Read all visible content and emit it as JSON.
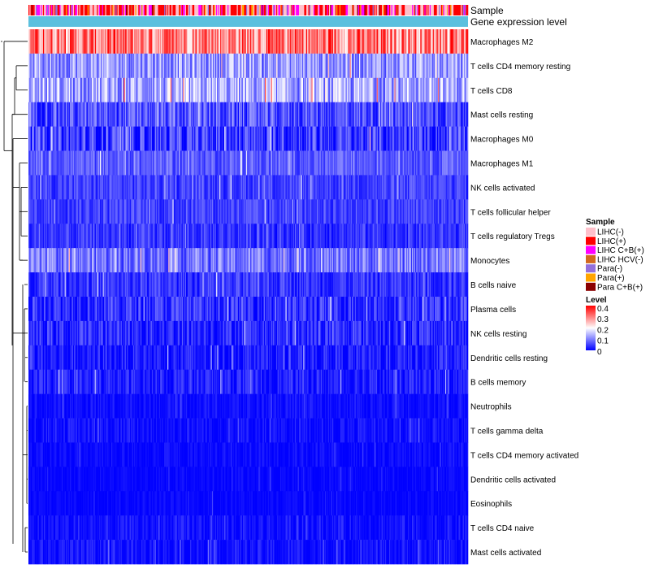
{
  "chart_data": {
    "type": "heatmap",
    "title": "",
    "n_samples": 424,
    "annotations": [
      {
        "name": "Sample",
        "label": "Sample"
      },
      {
        "name": "Gene expression level",
        "label": "Gene expression level"
      }
    ],
    "rows": [
      {
        "label": "Macrophages M2",
        "mean": 0.3,
        "spread": 0.1
      },
      {
        "label": "T cells CD4 memory resting",
        "mean": 0.12,
        "spread": 0.07
      },
      {
        "label": "T cells CD8",
        "mean": 0.13,
        "spread": 0.08
      },
      {
        "label": "Mast cells resting",
        "mean": 0.06,
        "spread": 0.06
      },
      {
        "label": "Macrophages M0",
        "mean": 0.04,
        "spread": 0.07
      },
      {
        "label": "Macrophages M1",
        "mean": 0.07,
        "spread": 0.04
      },
      {
        "label": "NK cells activated",
        "mean": 0.05,
        "spread": 0.04
      },
      {
        "label": "T cells follicular helper",
        "mean": 0.05,
        "spread": 0.04
      },
      {
        "label": "T cells regulatory  Tregs",
        "mean": 0.04,
        "spread": 0.04
      },
      {
        "label": "Monocytes",
        "mean": 0.09,
        "spread": 0.06
      },
      {
        "label": "B cells naive",
        "mean": 0.04,
        "spread": 0.04
      },
      {
        "label": "Plasma cells",
        "mean": 0.04,
        "spread": 0.05
      },
      {
        "label": "NK cells resting",
        "mean": 0.03,
        "spread": 0.05
      },
      {
        "label": "Dendritic cells resting",
        "mean": 0.02,
        "spread": 0.04
      },
      {
        "label": "B cells memory",
        "mean": 0.02,
        "spread": 0.04
      },
      {
        "label": "Neutrophils",
        "mean": 0.01,
        "spread": 0.02
      },
      {
        "label": "T cells gamma delta",
        "mean": 0.01,
        "spread": 0.03
      },
      {
        "label": "T cells CD4 memory activated",
        "mean": 0.005,
        "spread": 0.02
      },
      {
        "label": "Dendritic cells activated",
        "mean": 0.004,
        "spread": 0.015
      },
      {
        "label": "Eosinophils",
        "mean": 0.003,
        "spread": 0.015
      },
      {
        "label": "T cells CD4 naive",
        "mean": 0.01,
        "spread": 0.03
      },
      {
        "label": "Mast cells activated",
        "mean": 0.01,
        "spread": 0.03
      }
    ],
    "legend_sample": {
      "title": "Sample",
      "entries": [
        {
          "label": "LIHC(-)",
          "color": "#ffc0cb"
        },
        {
          "label": "LIHC(+)",
          "color": "#ff0000"
        },
        {
          "label": "LIHC C+B(+)",
          "color": "#ff00ff"
        },
        {
          "label": "LIHC HCV(-)",
          "color": "#d2691e"
        },
        {
          "label": "Para(-)",
          "color": "#9370db"
        },
        {
          "label": "Para(+)",
          "color": "#ffa500"
        },
        {
          "label": "Para C+B(+)",
          "color": "#8b0000"
        }
      ]
    },
    "legend_level": {
      "title": "Level",
      "ticks": [
        "0.4",
        "0.3",
        "0.2",
        "0.1",
        "0"
      ],
      "range": [
        0,
        0.4
      ],
      "colors": [
        "#0000ff",
        "#ffffff",
        "#ff0000"
      ]
    },
    "gene_expression_color": "#5bc0de"
  }
}
